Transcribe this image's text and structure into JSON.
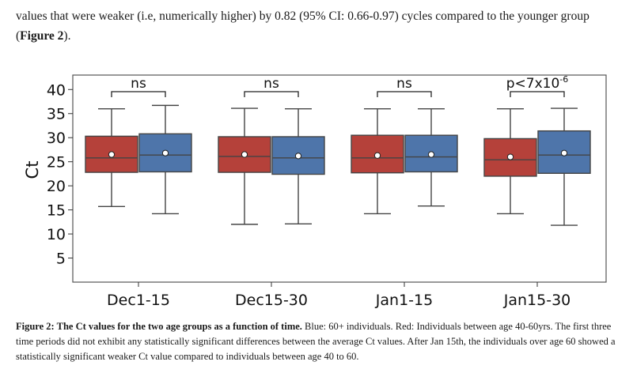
{
  "paragraph": {
    "text_before": "values that were weaker (i.e, numerically higher)  by 0.82 (95% CI: 0.66-0.97) cycles compared to the younger group (",
    "figure_ref": "Figure 2",
    "text_after": ")."
  },
  "caption": {
    "label": "Figure 2: The Ct values for the two age groups as a function of time.",
    "text": " Blue: 60+ individuals. Red: Individuals between age 40-60yrs. The first three time periods did not exhibit any statistically significant differences between the average Ct values. After Jan 15th, the individuals over age 60 showed a statistically significant weaker Ct value compared to individuals between age 40 to 60."
  },
  "colors": {
    "red": "#b5413a",
    "blue": "#4e75aa",
    "line": "#444444"
  },
  "chart_data": {
    "type": "box",
    "ylabel": "Ct",
    "xlabel": "",
    "ylim": [
      0,
      43
    ],
    "yticks": [
      5,
      10,
      15,
      20,
      25,
      30,
      35,
      40
    ],
    "categories": [
      "Dec1-15",
      "Dec15-30",
      "Jan1-15",
      "Jan15-30"
    ],
    "series": [
      {
        "color": "red",
        "boxes": [
          {
            "whislo": 15.7,
            "q1": 22.8,
            "med": 25.8,
            "q3": 30.3,
            "whishi": 36.0,
            "mean": 26.5
          },
          {
            "whislo": 12.0,
            "q1": 22.8,
            "med": 26.1,
            "q3": 30.2,
            "whishi": 36.1,
            "mean": 26.5
          },
          {
            "whislo": 14.2,
            "q1": 22.7,
            "med": 25.8,
            "q3": 30.5,
            "whishi": 36.0,
            "mean": 26.3
          },
          {
            "whislo": 14.2,
            "q1": 22.0,
            "med": 25.4,
            "q3": 29.8,
            "whishi": 36.0,
            "mean": 26.0
          }
        ]
      },
      {
        "color": "blue",
        "boxes": [
          {
            "whislo": 14.2,
            "q1": 22.9,
            "med": 26.4,
            "q3": 30.8,
            "whishi": 36.7,
            "mean": 26.8
          },
          {
            "whislo": 12.1,
            "q1": 22.4,
            "med": 25.8,
            "q3": 30.2,
            "whishi": 36.0,
            "mean": 26.2
          },
          {
            "whislo": 15.8,
            "q1": 22.9,
            "med": 26.0,
            "q3": 30.5,
            "whishi": 36.0,
            "mean": 26.5
          },
          {
            "whislo": 11.8,
            "q1": 22.6,
            "med": 26.4,
            "q3": 31.4,
            "whishi": 36.1,
            "mean": 26.8
          }
        ]
      }
    ],
    "annotations": [
      {
        "text": "ns"
      },
      {
        "text": "ns"
      },
      {
        "text": "ns"
      },
      {
        "text": "p<7x10",
        "superscript": "-6"
      }
    ]
  }
}
